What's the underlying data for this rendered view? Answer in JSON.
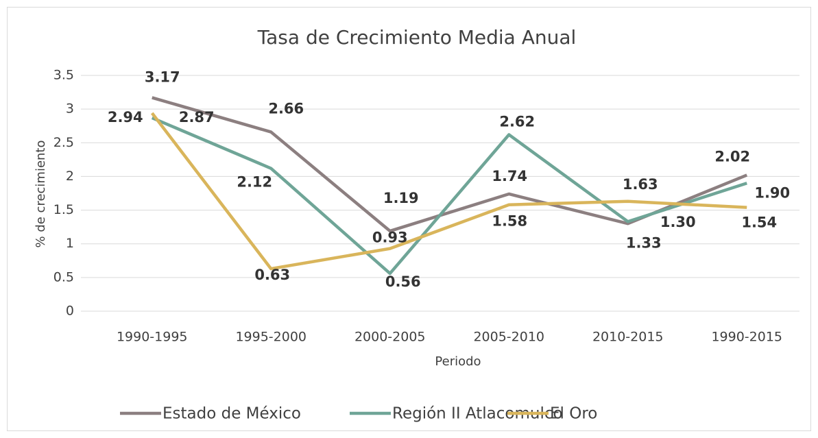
{
  "chart_data": {
    "type": "line",
    "title": "Tasa de Crecimiento Media Anual",
    "x_label": "Periodo",
    "y_label": "% de crecimiento",
    "categories": [
      "1990-1995",
      "1995-2000",
      "2000-2005",
      "2005-2010",
      "2010-2015",
      "1990-2015"
    ],
    "series": [
      {
        "name": "Estado de México",
        "color": "#8c7f80",
        "values": [
          3.17,
          2.66,
          1.19,
          1.74,
          1.3,
          2.02
        ],
        "value_labels": [
          "3.17",
          "2.66",
          "1.19",
          "1.74",
          "1.30",
          "2.02"
        ]
      },
      {
        "name": "Región II Atlacomulco",
        "color": "#6fa597",
        "values": [
          2.87,
          2.12,
          0.56,
          2.62,
          1.33,
          1.9
        ],
        "value_labels": [
          "2.87",
          "2.12",
          "0.56",
          "2.62",
          "1.33",
          "1.90"
        ]
      },
      {
        "name": "El Oro",
        "color": "#d9b55b",
        "values": [
          2.94,
          0.63,
          0.93,
          1.58,
          1.63,
          1.54
        ],
        "value_labels": [
          "2.94",
          "0.63",
          "0.93",
          "1.58",
          "1.63",
          "1.54"
        ]
      }
    ],
    "ylim": [
      0,
      3.5
    ],
    "yticks": [
      0,
      0.5,
      1,
      1.5,
      2,
      2.5,
      3,
      3.5
    ],
    "grid": true,
    "legend": "bottom"
  }
}
